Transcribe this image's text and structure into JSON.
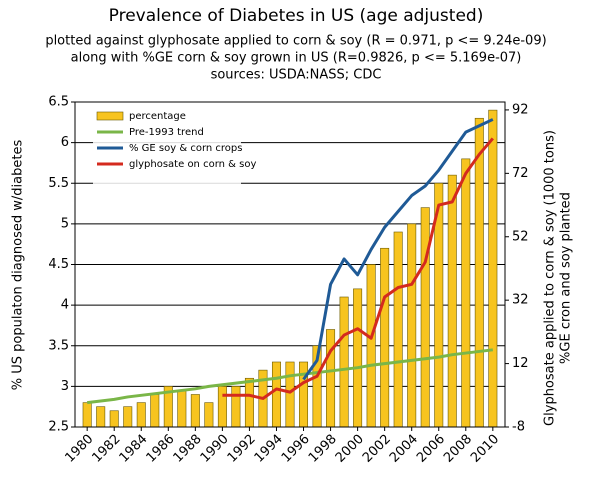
{
  "chart_data": {
    "type": "bar",
    "title": "Prevalence of Diabetes in US (age adjusted)",
    "subtitles": [
      "plotted against glyphosate applied to corn & soy (R = 0.971, p <= 9.24e-09)",
      "along with %GE corn & soy grown in US (R=0.9826, p <= 5.169e-07)",
      "sources: USDA:NASS; CDC"
    ],
    "ylabel": "% US populaton diagnosed w/diabetes",
    "y2labels": [
      "Glyphosate applied to corn & soy (1000 tons)",
      "%GE cron and soy planted"
    ],
    "x": [
      1980,
      1981,
      1982,
      1983,
      1984,
      1985,
      1986,
      1987,
      1988,
      1989,
      1990,
      1991,
      1992,
      1993,
      1994,
      1995,
      1996,
      1997,
      1998,
      1999,
      2000,
      2001,
      2002,
      2003,
      2004,
      2005,
      2006,
      2007,
      2008,
      2009,
      2010
    ],
    "xlim": [
      1979.1,
      2010.9
    ],
    "xticks": [
      1980,
      1982,
      1984,
      1986,
      1988,
      1990,
      1992,
      1994,
      1996,
      1998,
      2000,
      2002,
      2004,
      2006,
      2008,
      2010
    ],
    "ylim": [
      2.5,
      6.5
    ],
    "yticks": [
      2.5,
      3,
      3.5,
      4,
      4.5,
      5,
      5.5,
      6,
      6.5
    ],
    "y2lim": [
      -8,
      94.5
    ],
    "y2ticks": [
      -8,
      12,
      32,
      52,
      72,
      92
    ],
    "grid": true,
    "legend": "upper left",
    "series": [
      {
        "name": "percentage",
        "type": "bar",
        "color": "#f7c41f",
        "values": [
          2.8,
          2.75,
          2.7,
          2.75,
          2.8,
          2.9,
          3.0,
          2.95,
          2.9,
          2.8,
          3.0,
          3.0,
          3.1,
          3.2,
          3.3,
          3.3,
          3.3,
          3.5,
          3.7,
          4.1,
          4.2,
          4.5,
          4.7,
          4.9,
          5.0,
          5.2,
          5.5,
          5.6,
          5.8,
          6.3,
          6.4
        ]
      },
      {
        "name": "Pre-1993 trend",
        "type": "line",
        "color": "#7ab648",
        "values": [
          2.8,
          2.82,
          2.84,
          2.87,
          2.89,
          2.91,
          2.93,
          2.95,
          2.97,
          3.0,
          3.02,
          3.04,
          3.06,
          3.08,
          3.1,
          3.13,
          3.15,
          3.17,
          3.19,
          3.21,
          3.23,
          3.26,
          3.28,
          3.3,
          3.32,
          3.34,
          3.36,
          3.39,
          3.41,
          3.43,
          3.45
        ]
      },
      {
        "name": "% GE soy & corn crops",
        "type": "line",
        "axis": "y2",
        "color": "#1f5a96",
        "values": [
          null,
          null,
          null,
          null,
          null,
          null,
          null,
          null,
          null,
          null,
          null,
          null,
          null,
          null,
          null,
          null,
          7,
          13,
          37,
          45,
          40,
          48,
          55,
          60,
          65,
          68,
          73,
          79,
          85,
          87,
          89
        ]
      },
      {
        "name": "glyphosate on corn & soy",
        "type": "line",
        "axis": "y2",
        "color": "#d42a1e",
        "values": [
          null,
          null,
          null,
          null,
          null,
          null,
          null,
          null,
          null,
          null,
          2,
          2,
          2,
          1,
          4,
          3,
          6,
          8,
          16,
          21,
          23,
          20,
          33,
          36,
          37,
          44,
          62,
          63,
          72,
          78,
          83
        ]
      }
    ]
  }
}
